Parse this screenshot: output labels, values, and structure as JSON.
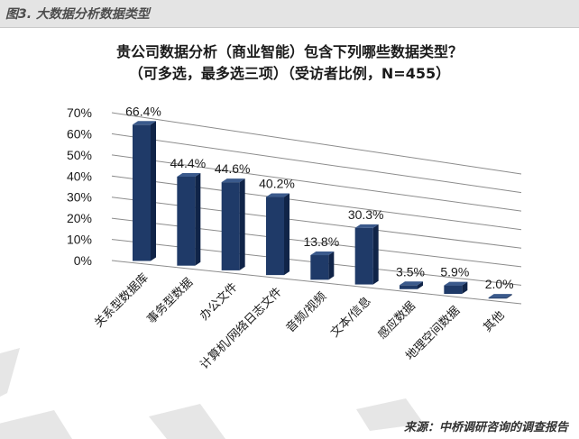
{
  "figure": {
    "label": "图3. 大数据分析数据类型",
    "source": "来源：中桥调研咨询的调查报告"
  },
  "chart_data": {
    "type": "bar",
    "title": "贵公司数据分析（商业智能）包含下列哪些数据类型？",
    "subtitle": "（可多选，最多选三项）（受访者比例，N=455）",
    "categories": [
      "关系型数据库",
      "事务型数据",
      "办公文件",
      "计算机/网络日志文件",
      "音频/视频",
      "文本/信息",
      "感应数据",
      "地理空间数据",
      "其他"
    ],
    "values": [
      66.4,
      44.4,
      44.6,
      40.2,
      13.8,
      30.3,
      3.5,
      5.9,
      2.0
    ],
    "data_labels": [
      "66.4%",
      "44.4%",
      "44.6%",
      "40.2%",
      "13.8%",
      "30.3%",
      "3.5%",
      "5.9%",
      "2.0%"
    ],
    "y_ticks": [
      "0%",
      "10%",
      "20%",
      "30%",
      "40%",
      "50%",
      "60%",
      "70%"
    ],
    "ylim": [
      0,
      70
    ],
    "grid": true,
    "legend": "none",
    "colors": {
      "bar": "#1f3a68",
      "bar_side": "#102448",
      "bar_top": "#3b5a8c",
      "grid": "#8c8c8c"
    }
  }
}
